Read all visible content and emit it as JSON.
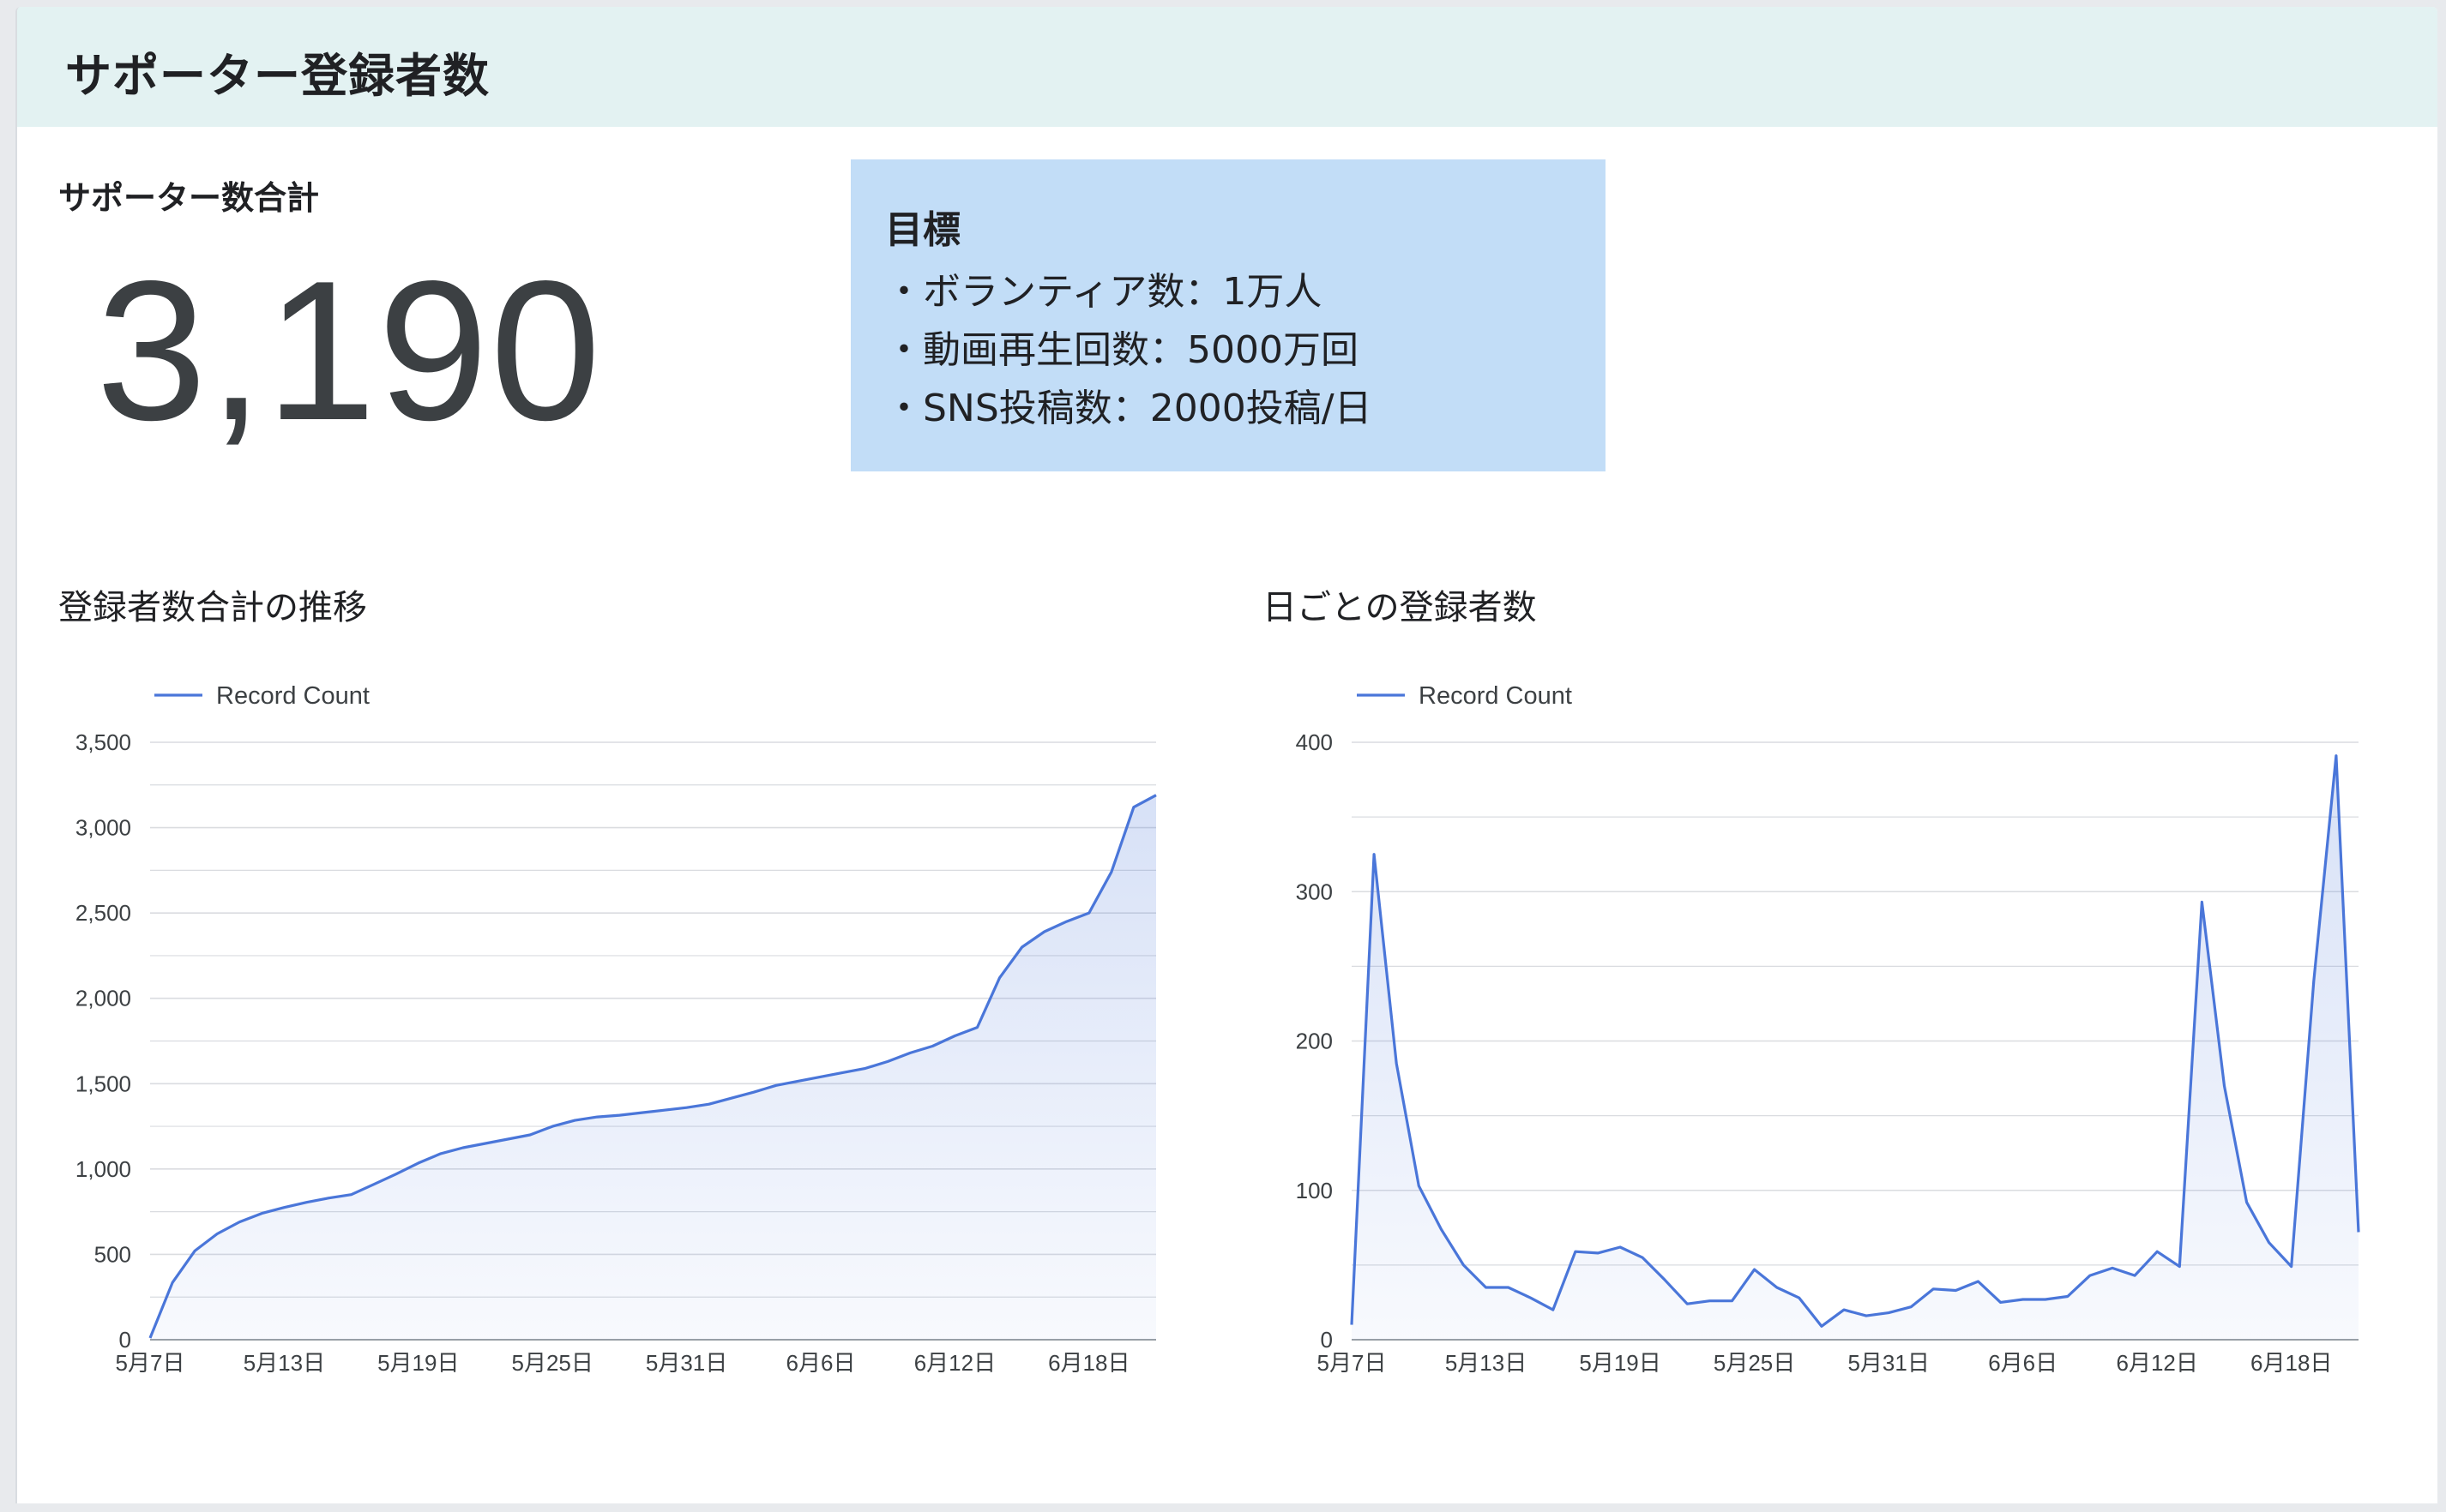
{
  "header": {
    "title": "サポーター登録者数"
  },
  "scorecard": {
    "label": "サポーター数合計",
    "value": "3,190"
  },
  "goals": {
    "title": "目標",
    "items": [
      "・ボランティア数：1万人",
      "・動画再生回数：5000万回",
      "・SNS投稿数：2000投稿/日"
    ]
  },
  "colors": {
    "header_bg": "#e3f2f2",
    "goal_bg": "#c2ddf7",
    "series_line": "#4a76d9",
    "grid": "#dadce0"
  },
  "chart_data": [
    {
      "type": "area",
      "title": "登録者数合計の推移",
      "legend": [
        "Record Count"
      ],
      "legend_position": "top-left",
      "grid": true,
      "x_tick_labels": [
        "5月7日",
        "5月13日",
        "5月19日",
        "5月25日",
        "5月31日",
        "6月6日",
        "6月12日",
        "6月18日"
      ],
      "x_tick_index": [
        0,
        6,
        12,
        18,
        24,
        30,
        36,
        42
      ],
      "yticks": [
        0,
        500,
        1000,
        1500,
        2000,
        2500,
        3000,
        3500
      ],
      "ytick_labels": [
        "0",
        "500",
        "1,000",
        "1,500",
        "2,000",
        "2,500",
        "3,000",
        "3,500"
      ],
      "ylim": [
        0,
        3500
      ],
      "series": [
        {
          "name": "Record Count",
          "values": [
            10,
            335,
            520,
            620,
            690,
            740,
            775,
            805,
            830,
            850,
            910,
            970,
            1035,
            1090,
            1125,
            1150,
            1175,
            1200,
            1250,
            1285,
            1305,
            1315,
            1330,
            1345,
            1360,
            1380,
            1415,
            1450,
            1490,
            1515,
            1540,
            1565,
            1590,
            1630,
            1680,
            1720,
            1780,
            1830,
            2120,
            2300,
            2390,
            2450,
            2500,
            2740,
            3120,
            3190
          ]
        }
      ]
    },
    {
      "type": "area",
      "title": "日ごとの登録者数",
      "legend": [
        "Record Count"
      ],
      "legend_position": "top-left",
      "grid": true,
      "x_tick_labels": [
        "5月7日",
        "5月13日",
        "5月19日",
        "5月25日",
        "5月31日",
        "6月6日",
        "6月12日",
        "6月18日"
      ],
      "x_tick_index": [
        0,
        6,
        12,
        18,
        24,
        30,
        36,
        42
      ],
      "yticks": [
        0,
        100,
        200,
        300,
        400
      ],
      "ytick_labels": [
        "0",
        "100",
        "200",
        "300",
        "400"
      ],
      "ylim": [
        0,
        400
      ],
      "series": [
        {
          "name": "Record Count",
          "values": [
            10,
            325,
            185,
            103,
            74,
            50,
            35,
            35,
            28,
            20,
            59,
            58,
            62,
            55,
            40,
            24,
            26,
            26,
            47,
            35,
            28,
            9,
            20,
            16,
            18,
            22,
            34,
            33,
            39,
            25,
            27,
            27,
            29,
            43,
            48,
            43,
            59,
            49,
            293,
            170,
            92,
            65,
            49,
            240,
            391,
            72
          ]
        }
      ]
    }
  ]
}
